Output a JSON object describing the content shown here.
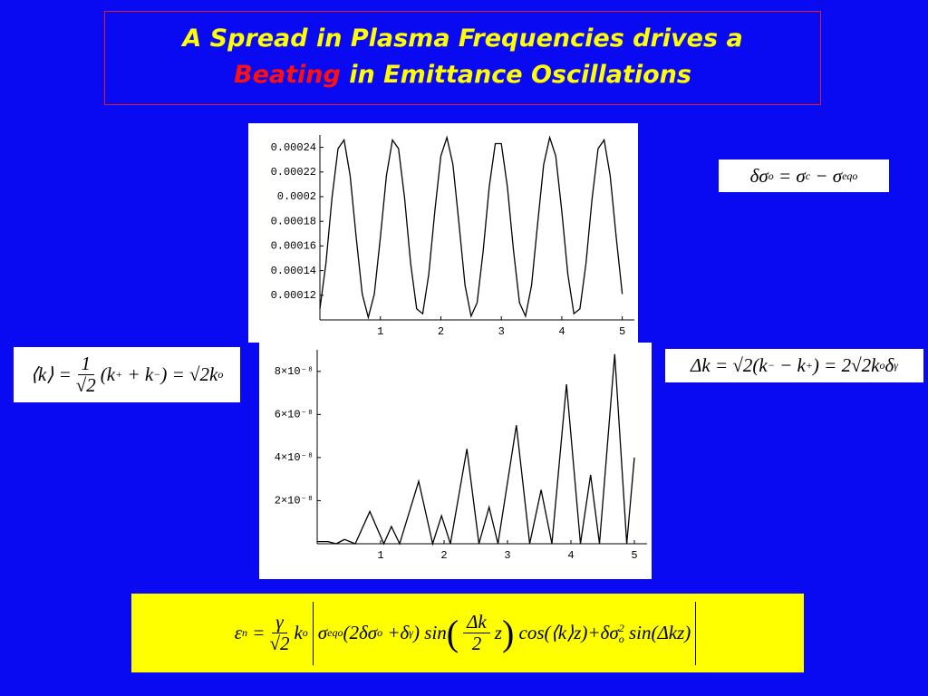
{
  "title": {
    "line1": "A Spread in Plasma Frequencies drives a",
    "highlight": "Beating",
    "line2": "in Emittance Oscillations"
  },
  "chart_data": [
    {
      "type": "line",
      "color": "#000000",
      "x": [
        0,
        0.1,
        0.2,
        0.3,
        0.4,
        0.5,
        0.6,
        0.7,
        0.8,
        0.9,
        1.0,
        1.1,
        1.2,
        1.3,
        1.4,
        1.5,
        1.6,
        1.7,
        1.8,
        1.9,
        2.0,
        2.1,
        2.2,
        2.3,
        2.4,
        2.5,
        2.6,
        2.7,
        2.8,
        2.9,
        3.0,
        3.1,
        3.2,
        3.3,
        3.4,
        3.5,
        3.6,
        3.7,
        3.8,
        3.9,
        4.0,
        4.1,
        4.2,
        4.3,
        4.4,
        4.5,
        4.6,
        4.7,
        4.8,
        4.9,
        5.0
      ],
      "values": [
        0.000109,
        0.000146,
        0.000199,
        0.000239,
        0.000246,
        0.000217,
        0.000167,
        0.000121,
        0.000102,
        0.000121,
        0.000167,
        0.000217,
        0.000246,
        0.000239,
        0.000199,
        0.000146,
        0.000109,
        0.000105,
        0.000137,
        0.000188,
        0.000233,
        0.000248,
        0.000226,
        0.000178,
        0.000128,
        0.000103,
        0.000114,
        0.000156,
        0.000208,
        0.000243,
        0.000243,
        0.000208,
        0.000157,
        0.000114,
        0.000103,
        0.000128,
        0.000178,
        0.000226,
        0.000248,
        0.000233,
        0.000188,
        0.000137,
        0.000105,
        0.000109,
        0.000146,
        0.000198,
        0.000239,
        0.000246,
        0.000217,
        0.000167,
        0.000121
      ],
      "xlim": [
        0,
        5.2
      ],
      "xticks": [
        1,
        2,
        3,
        4,
        5
      ],
      "ylim": [
        0.0001,
        0.00025
      ],
      "yticks": [
        0.00012,
        0.00014,
        0.00016,
        0.00018,
        0.0002,
        0.00022,
        0.00024
      ]
    },
    {
      "type": "line",
      "color": "#000000",
      "x": [
        0,
        0.17,
        0.3,
        0.43,
        0.6,
        0.83,
        1.05,
        1.17,
        1.3,
        1.6,
        1.82,
        1.96,
        2.1,
        2.36,
        2.55,
        2.71,
        2.85,
        3.14,
        3.35,
        3.53,
        3.7,
        3.93,
        4.15,
        4.31,
        4.45,
        4.69,
        4.88,
        5.0
      ],
      "values": [
        1e-09,
        1e-09,
        0,
        2e-09,
        0,
        1.5e-08,
        0,
        8e-09,
        0,
        2.9e-08,
        0,
        1.3e-08,
        0,
        4.4e-08,
        0,
        1.7e-08,
        0,
        5.5e-08,
        0,
        2.5e-08,
        0,
        7.4e-08,
        0,
        3.2e-08,
        0,
        8.8e-08,
        0,
        4e-08
      ],
      "xlim": [
        0,
        5.2
      ],
      "xticks": [
        1,
        2,
        3,
        4,
        5
      ],
      "ylim": [
        0,
        9e-08
      ],
      "yticks": [
        {
          "value": 2e-08,
          "label": "2×10⁻⁸"
        },
        {
          "value": 4e-08,
          "label": "4×10⁻⁸"
        },
        {
          "value": 6e-08,
          "label": "6×10⁻⁸"
        },
        {
          "value": 8e-08,
          "label": "8×10⁻⁸"
        }
      ]
    }
  ],
  "equations": [
    [
      "δσ",
      "o",
      " = σ",
      "c",
      " − σ",
      "eqo"
    ],
    [
      "⟨k⟩ =",
      "1",
      "√2",
      "(k",
      "+",
      " + k",
      "−",
      ") = √2k",
      "o"
    ],
    [
      "Δk = √2(k",
      "−",
      " − k",
      "+",
      ") = 2√2k",
      "o",
      "δ",
      "γ"
    ],
    [
      "ε",
      "n",
      " =",
      "γ",
      "√2",
      "k",
      "o",
      "σ",
      "eqo",
      "(2δσ",
      "o",
      " +δ",
      "γ",
      ") sin",
      "Δk",
      "2",
      "z",
      " cos(⟨k⟩z)+δσ",
      "2",
      "o",
      " sin(Δkz)"
    ]
  ]
}
